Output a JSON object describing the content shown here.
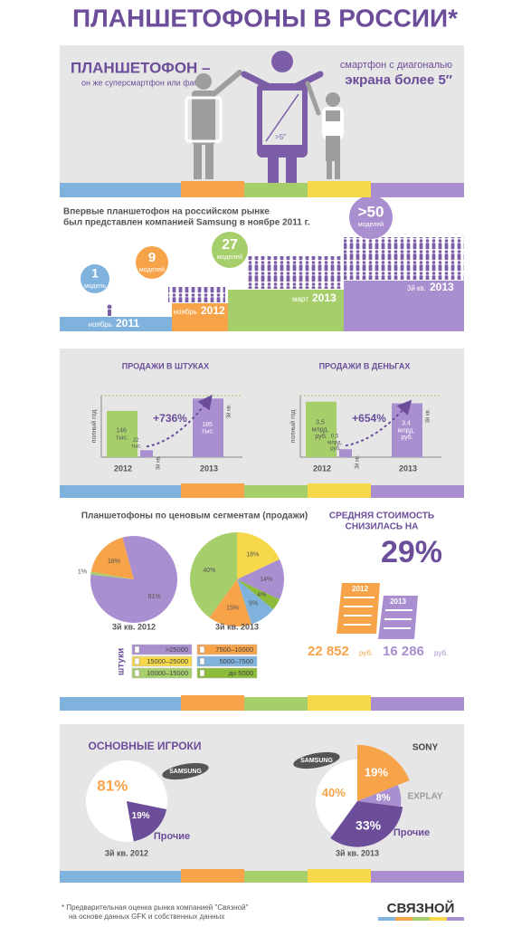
{
  "title": "ПЛАНШЕТОФОНЫ В РОССИИ*",
  "intro": {
    "heading": "ПЛАНШЕТОФОН –",
    "subheading": "он же суперсмартфон или фаблет",
    "definition": [
      "смартфон с диагональю",
      "экрана более 5″"
    ],
    "phone_label": ">5″"
  },
  "timeline": {
    "text": [
      "Впервые планшетофон на российском рынке",
      "был представлен компанией Samsung в ноябре 2011 г."
    ],
    "steps": [
      {
        "count": "1",
        "unit": "модель",
        "month": "ноябрь",
        "year": "2011"
      },
      {
        "count": "9",
        "unit": "моделей",
        "month": "ноябрь",
        "year": "2012"
      },
      {
        "count": "27",
        "unit": "моделей",
        "month": "март",
        "year": "2013"
      },
      {
        "count": ">50",
        "unit": "моделей",
        "month": "3й кв.",
        "year": "2013"
      }
    ]
  },
  "chart_data": [
    {
      "type": "bar",
      "title": "ПРОДАЖИ В ШТУКАХ",
      "categories": [
        "2012",
        "2013"
      ],
      "series": [
        {
          "name": "полный год",
          "color": "#a6cf6b",
          "values": [
            146,
            null
          ],
          "value_labels": [
            "146 тыс.",
            null
          ]
        },
        {
          "name": "3й кв.",
          "color": "#a98fcf",
          "values": [
            22,
            185
          ],
          "value_labels": [
            "22 тыс.",
            "185 тыс."
          ]
        }
      ],
      "ylim": [
        0,
        200
      ],
      "annotation": "+736%"
    },
    {
      "type": "bar",
      "title": "ПРОДАЖИ В ДЕНЬГАХ",
      "categories": [
        "2012",
        "2013"
      ],
      "series": [
        {
          "name": "полный год",
          "color": "#a6cf6b",
          "values": [
            3.5,
            null
          ],
          "value_labels": [
            "3,5 млрд. руб.",
            null
          ]
        },
        {
          "name": "3й кв.",
          "color": "#a98fcf",
          "values": [
            0.5,
            3.4
          ],
          "value_labels": [
            "0,5 млрд. руб.",
            "3,4 млрд. руб."
          ]
        }
      ],
      "ylim": [
        0,
        4
      ],
      "annotation": "+654%"
    },
    {
      "type": "pie",
      "title": "3й кв. 2012",
      "categories": [
        "7500–10000",
        ">25000",
        "10000–15000"
      ],
      "values": [
        18,
        81,
        1
      ],
      "value_labels": [
        "18%",
        "81%",
        "1%"
      ],
      "colors": [
        "#f7a34a",
        "#a98fcf",
        "#a6cf6b"
      ]
    },
    {
      "type": "pie",
      "title": "3й кв. 2013",
      "categories": [
        "15000–25000",
        ">25000",
        "до 5000",
        "5000–7500",
        "7500–10000",
        "10000–15000"
      ],
      "values": [
        18,
        14,
        4,
        9,
        15,
        40
      ],
      "value_labels": [
        "18%",
        "14%",
        "4%",
        "9%",
        "15%",
        "40%"
      ],
      "colors": [
        "#f6d84a",
        "#a98fcf",
        "#8dbb3a",
        "#7fb2dd",
        "#f7a34a",
        "#a6cf6b"
      ]
    },
    {
      "type": "pie",
      "title": "3й кв. 2012",
      "categories": [
        "SAMSUNG",
        "Прочие"
      ],
      "values": [
        81,
        19
      ],
      "value_labels": [
        "81%",
        "19%"
      ],
      "colors": [
        "#ffffff",
        "#6b4d9a"
      ]
    },
    {
      "type": "pie",
      "title": "3й кв. 2013",
      "categories": [
        "SAMSUNG",
        "SONY",
        "EXPLAY",
        "Прочие"
      ],
      "values": [
        40,
        19,
        8,
        33
      ],
      "value_labels": [
        "40%",
        "19%",
        "8%",
        "33%"
      ],
      "colors": [
        "#ffffff",
        "#f7a34a",
        "#a98fcf",
        "#6b4d9a"
      ]
    }
  ],
  "segments": {
    "title": "Планшетофоны по ценовым сегментам (продажи)",
    "legend_label": "штуки"
  },
  "players": {
    "title": "ОСНОВНЫЕ ИГРОКИ"
  },
  "price": {
    "title": [
      "СРЕДНЯЯ СТОИМОСТЬ",
      "СНИЗИЛАСЬ НА"
    ],
    "change": "29%",
    "years": [
      "2012",
      "2013"
    ],
    "values": [
      "22 852",
      "16 286"
    ],
    "unit": "руб."
  },
  "footer": {
    "note": [
      "* Предварительная оценка рынка компанией \"Связной\"",
      "на основе данных GFK и собственных данных"
    ],
    "logo": "СВЯЗНОЙ"
  }
}
